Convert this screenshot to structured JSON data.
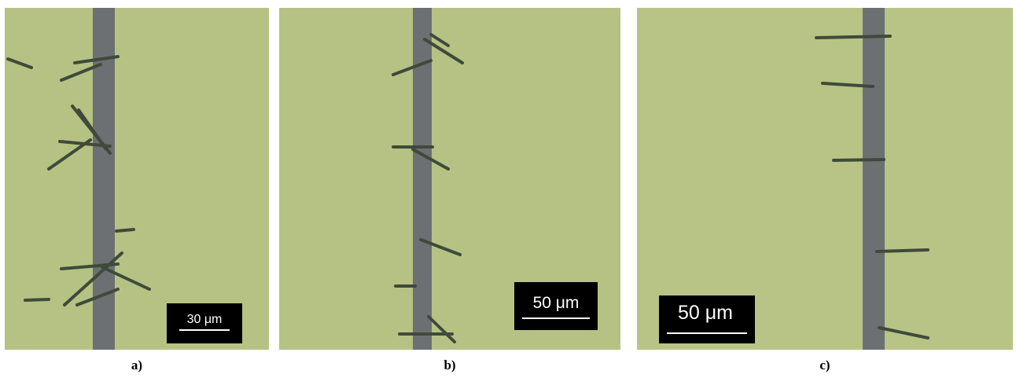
{
  "panels": [
    {
      "label": "a)",
      "scale_bar": "30 μm"
    },
    {
      "label": "b)",
      "scale_bar": "50 μm"
    },
    {
      "label": "c)",
      "scale_bar": "50 μm"
    }
  ]
}
